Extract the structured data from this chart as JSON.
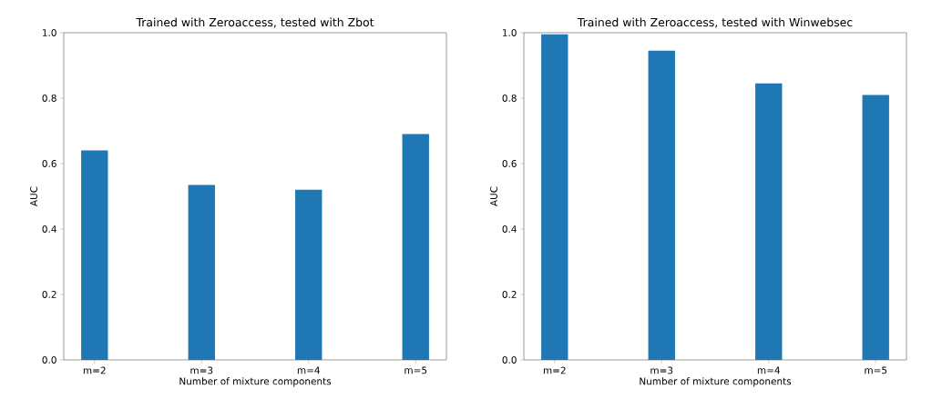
{
  "chart_data": [
    {
      "type": "bar",
      "title": "Trained with Zeroaccess, tested with Zbot",
      "xlabel": "Number of mixture components",
      "ylabel": "AUC",
      "categories": [
        "m=2",
        "m=3",
        "m=4",
        "m=5"
      ],
      "values": [
        0.64,
        0.535,
        0.52,
        0.69
      ],
      "color": "#1f77b4",
      "ylim": [
        0,
        1
      ],
      "yticks": [
        {
          "value": 0,
          "label": "0.0"
        },
        {
          "value": 0.2,
          "label": "0.2"
        },
        {
          "value": 0.4,
          "label": "0.4"
        },
        {
          "value": 0.6,
          "label": "0.6"
        },
        {
          "value": 0.8,
          "label": "0.8"
        },
        {
          "value": 1,
          "label": "1.0"
        }
      ]
    },
    {
      "type": "bar",
      "title": "Trained with Zeroaccess, tested with Winwebsec",
      "xlabel": "Number of mixture components",
      "ylabel": "AUC",
      "categories": [
        "m=2",
        "m=3",
        "m=4",
        "m=5"
      ],
      "values": [
        0.995,
        0.945,
        0.845,
        0.81
      ],
      "color": "#1f77b4",
      "ylim": [
        0,
        1
      ],
      "yticks": [
        {
          "value": 0,
          "label": "0.0"
        },
        {
          "value": 0.2,
          "label": "0.2"
        },
        {
          "value": 0.4,
          "label": "0.4"
        },
        {
          "value": 0.6,
          "label": "0.6"
        },
        {
          "value": 0.8,
          "label": "0.8"
        },
        {
          "value": 1,
          "label": "1.0"
        }
      ]
    }
  ]
}
